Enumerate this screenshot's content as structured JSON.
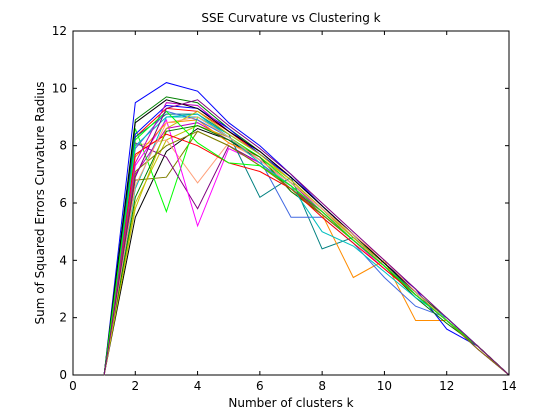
{
  "chart_data": {
    "type": "line",
    "title": "SSE Curvature vs Clustering k",
    "xlabel": "Number of clusters k",
    "ylabel": "Sum of Squared Errors Curvature Radius",
    "xlim": [
      0,
      14
    ],
    "ylim": [
      0,
      12
    ],
    "xticks": [
      "0",
      "2",
      "4",
      "6",
      "8",
      "10",
      "12",
      "14"
    ],
    "yticks": [
      "0",
      "2",
      "4",
      "6",
      "8",
      "10",
      "12"
    ],
    "grid": false,
    "legend": "none",
    "colors": [
      "#0000ff",
      "#008000",
      "#ff0000",
      "#00bfbf",
      "#bf00bf",
      "#bfbf00",
      "#000000",
      "#808000",
      "#ffa07a",
      "#00ff00",
      "#800080",
      "#ff00ff",
      "#008080",
      "#ff8c00",
      "#4169e1"
    ],
    "series": [
      {
        "x": [
          1,
          2,
          3,
          4,
          5,
          6,
          7,
          8,
          9,
          10,
          11,
          12,
          13,
          14
        ],
        "y": [
          0,
          9.5,
          10.2,
          9.9,
          8.8,
          8.0,
          7.0,
          5.9,
          4.9,
          3.9,
          2.9,
          1.9,
          1.0,
          0
        ]
      },
      {
        "x": [
          1,
          2,
          3,
          4,
          5,
          6,
          7,
          8,
          9,
          10,
          11,
          12,
          13,
          14
        ],
        "y": [
          0,
          8.9,
          9.7,
          9.5,
          8.6,
          7.8,
          6.9,
          5.9,
          4.9,
          3.9,
          2.9,
          2.0,
          1.0,
          0
        ]
      },
      {
        "x": [
          1,
          2,
          3,
          4,
          5,
          6,
          7,
          8,
          9,
          10,
          11,
          12,
          13,
          14
        ],
        "y": [
          0,
          8.3,
          9.3,
          9.2,
          8.5,
          7.7,
          6.8,
          5.8,
          4.8,
          3.9,
          2.9,
          1.9,
          1.0,
          0
        ]
      },
      {
        "x": [
          1,
          2,
          3,
          4,
          5,
          6,
          7,
          8,
          9,
          10,
          11,
          12,
          13,
          14
        ],
        "y": [
          0,
          6.5,
          9.0,
          9.0,
          8.4,
          7.7,
          6.9,
          5.9,
          4.9,
          3.9,
          2.9,
          1.9,
          1.0,
          0
        ]
      },
      {
        "x": [
          1,
          2,
          3,
          4,
          5,
          6,
          7,
          8,
          9,
          10,
          11,
          12,
          13,
          14
        ],
        "y": [
          0,
          7.0,
          8.6,
          8.8,
          8.2,
          7.5,
          6.7,
          5.7,
          4.8,
          3.8,
          2.8,
          1.9,
          1.0,
          0
        ]
      },
      {
        "x": [
          1,
          2,
          3,
          4,
          5,
          6,
          7,
          8,
          9,
          10,
          11,
          12,
          13,
          14
        ],
        "y": [
          0,
          6.0,
          8.2,
          8.7,
          8.3,
          7.6,
          6.8,
          5.8,
          4.9,
          3.9,
          2.9,
          1.9,
          1.0,
          0
        ]
      },
      {
        "x": [
          1,
          2,
          3,
          4,
          5,
          6,
          7,
          8,
          9,
          10,
          11,
          12,
          13,
          14
        ],
        "y": [
          0,
          5.5,
          7.8,
          8.6,
          8.2,
          7.5,
          6.7,
          5.8,
          4.8,
          3.8,
          2.9,
          1.9,
          1.0,
          0
        ]
      },
      {
        "x": [
          1,
          2,
          3,
          4,
          5,
          6,
          7,
          8,
          9,
          10,
          11,
          12,
          13,
          14
        ],
        "y": [
          0,
          6.8,
          6.9,
          8.5,
          8.0,
          7.3,
          6.6,
          5.6,
          4.7,
          3.8,
          2.8,
          1.9,
          0.9,
          0
        ]
      },
      {
        "x": [
          1,
          2,
          3,
          4,
          5,
          6,
          7,
          8,
          9,
          10,
          11,
          12,
          13,
          14
        ],
        "y": [
          0,
          8.0,
          8.2,
          6.7,
          8.1,
          7.5,
          6.6,
          5.7,
          4.8,
          3.8,
          2.9,
          1.9,
          1.0,
          0
        ]
      },
      {
        "x": [
          1,
          2,
          3,
          4,
          5,
          6,
          7,
          8,
          9,
          10,
          11,
          12,
          13,
          14
        ],
        "y": [
          0,
          8.6,
          5.7,
          9.0,
          8.3,
          7.6,
          6.7,
          5.8,
          4.8,
          3.9,
          2.9,
          1.9,
          1.0,
          0
        ]
      },
      {
        "x": [
          1,
          2,
          3,
          4,
          5,
          6,
          7,
          8,
          9,
          10,
          11,
          12,
          13,
          14
        ],
        "y": [
          0,
          8.1,
          7.6,
          5.8,
          8.0,
          7.4,
          6.5,
          5.7,
          4.7,
          3.8,
          2.8,
          1.9,
          0.9,
          0
        ]
      },
      {
        "x": [
          1,
          2,
          3,
          4,
          5,
          6,
          7,
          8,
          9,
          10,
          11,
          12,
          13,
          14
        ],
        "y": [
          0,
          7.3,
          8.9,
          5.2,
          7.9,
          7.4,
          6.5,
          5.6,
          4.7,
          3.7,
          2.8,
          1.9,
          0.9,
          0
        ]
      },
      {
        "x": [
          1,
          2,
          3,
          4,
          5,
          6,
          7,
          8,
          9,
          10,
          11,
          12,
          13,
          14
        ],
        "y": [
          0,
          8.3,
          9.1,
          9.1,
          8.4,
          6.2,
          6.9,
          4.4,
          4.8,
          3.9,
          2.8,
          1.9,
          1.0,
          0
        ]
      },
      {
        "x": [
          1,
          2,
          3,
          4,
          5,
          6,
          7,
          8,
          9,
          10,
          11,
          12,
          13,
          14
        ],
        "y": [
          0,
          7.6,
          8.8,
          8.9,
          8.1,
          7.6,
          6.4,
          5.6,
          3.4,
          4.0,
          1.9,
          1.9,
          1.0,
          0
        ]
      },
      {
        "x": [
          1,
          2,
          3,
          4,
          5,
          6,
          7,
          8,
          9,
          10,
          11,
          12,
          13,
          14
        ],
        "y": [
          0,
          7.9,
          9.2,
          8.9,
          8.3,
          7.5,
          5.5,
          5.5,
          4.6,
          3.4,
          2.4,
          2.0,
          1.0,
          0
        ]
      },
      {
        "x": [
          1,
          2,
          3,
          4,
          5,
          6,
          7,
          8,
          9,
          10,
          11,
          12,
          13,
          14
        ],
        "y": [
          0,
          8.4,
          9.4,
          9.3,
          8.6,
          7.7,
          6.9,
          5.9,
          4.9,
          3.9,
          3.0,
          1.6,
          1.0,
          0
        ]
      },
      {
        "x": [
          1,
          2,
          3,
          4,
          5,
          6,
          7,
          8,
          9,
          10,
          11,
          12,
          13,
          14
        ],
        "y": [
          0,
          6.2,
          8.5,
          8.7,
          8.2,
          7.6,
          6.4,
          5.6,
          4.7,
          3.8,
          2.7,
          1.8,
          1.0,
          0
        ]
      },
      {
        "x": [
          1,
          2,
          3,
          4,
          5,
          6,
          7,
          8,
          9,
          10,
          11,
          12,
          13,
          14
        ],
        "y": [
          0,
          7.7,
          8.4,
          8.0,
          7.4,
          7.1,
          6.5,
          5.5,
          4.6,
          3.7,
          2.8,
          1.9,
          1.0,
          0
        ]
      },
      {
        "x": [
          1,
          2,
          3,
          4,
          5,
          6,
          7,
          8,
          9,
          10,
          11,
          12,
          13,
          14
        ],
        "y": [
          0,
          8.0,
          9.0,
          9.1,
          8.3,
          7.4,
          6.6,
          5.0,
          4.5,
          3.6,
          2.7,
          2.0,
          1.0,
          0
        ]
      },
      {
        "x": [
          1,
          2,
          3,
          4,
          5,
          6,
          7,
          8,
          9,
          10,
          11,
          12,
          13,
          14
        ],
        "y": [
          0,
          7.4,
          9.5,
          9.4,
          8.5,
          7.8,
          6.9,
          5.9,
          4.9,
          3.9,
          2.9,
          1.9,
          1.0,
          0
        ]
      },
      {
        "x": [
          1,
          2,
          3,
          4,
          5,
          6,
          7,
          8,
          9,
          10,
          11,
          12,
          13,
          14
        ],
        "y": [
          0,
          5.8,
          8.6,
          9.2,
          8.4,
          7.7,
          6.8,
          5.8,
          4.8,
          3.9,
          2.9,
          1.9,
          1.0,
          0
        ]
      },
      {
        "x": [
          1,
          2,
          3,
          4,
          5,
          6,
          7,
          8,
          9,
          10,
          11,
          12,
          13,
          14
        ],
        "y": [
          0,
          8.8,
          9.6,
          9.3,
          8.5,
          7.8,
          6.9,
          5.9,
          4.9,
          3.9,
          2.9,
          1.9,
          1.0,
          0
        ]
      },
      {
        "x": [
          1,
          2,
          3,
          4,
          5,
          6,
          7,
          8,
          9,
          10,
          11,
          12,
          13,
          14
        ],
        "y": [
          0,
          7.1,
          8.0,
          8.5,
          8.0,
          7.3,
          6.5,
          5.6,
          4.7,
          3.8,
          2.8,
          1.9,
          0.9,
          0
        ]
      },
      {
        "x": [
          1,
          2,
          3,
          4,
          5,
          6,
          7,
          8,
          9,
          10,
          11,
          12,
          13,
          14
        ],
        "y": [
          0,
          6.6,
          8.8,
          9.0,
          8.3,
          7.5,
          6.7,
          5.8,
          4.9,
          4.0,
          2.9,
          1.9,
          1.0,
          0
        ]
      },
      {
        "x": [
          1,
          2,
          3,
          4,
          5,
          6,
          7,
          8,
          9,
          10,
          11,
          12,
          13,
          14
        ],
        "y": [
          0,
          8.2,
          9.2,
          8.1,
          7.4,
          7.3,
          6.6,
          5.7,
          4.7,
          3.8,
          2.8,
          1.9,
          1.0,
          0
        ]
      },
      {
        "x": [
          1,
          2,
          3,
          4,
          5,
          6,
          7,
          8,
          9,
          10,
          11,
          12,
          13,
          14
        ],
        "y": [
          0,
          6.9,
          9.3,
          9.6,
          8.7,
          7.9,
          7.0,
          6.0,
          5.0,
          4.0,
          3.0,
          2.0,
          1.0,
          0
        ]
      }
    ]
  }
}
